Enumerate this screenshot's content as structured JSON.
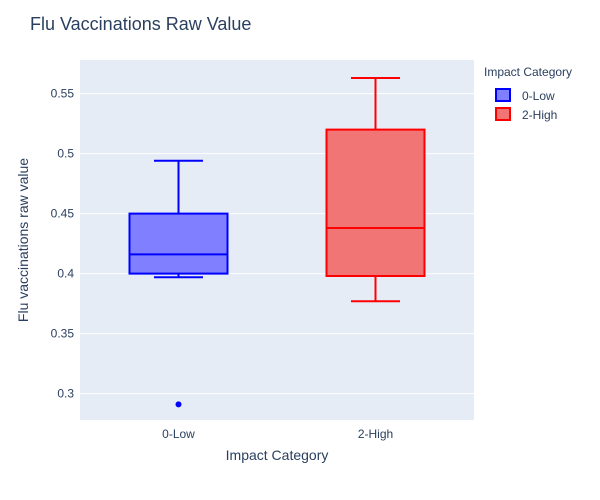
{
  "chart_data": {
    "type": "box",
    "title": "Flu Vaccinations Raw Value",
    "xlabel": "Impact Category",
    "ylabel": "Flu vaccinations raw value",
    "categories": [
      "0-Low",
      "2-High"
    ],
    "ylim": [
      0.278,
      0.578
    ],
    "yticks": [
      0.3,
      0.35,
      0.4,
      0.45,
      0.5,
      0.55
    ],
    "ytick_labels": [
      "0.3",
      "0.35",
      "0.4",
      "0.45",
      "0.5",
      "0.55"
    ],
    "grid": true,
    "legend": {
      "title": "Impact Category",
      "placement": "right"
    },
    "series": [
      {
        "name": "0-Low",
        "color": "#0000ff",
        "fill": "#7f7fff",
        "q1": 0.4,
        "median": 0.416,
        "q3": 0.45,
        "whisker_low": 0.397,
        "whisker_high": 0.494,
        "outliers": [
          0.291
        ]
      },
      {
        "name": "2-High",
        "color": "#ff0000",
        "fill": "#f27575",
        "q1": 0.398,
        "median": 0.438,
        "q3": 0.52,
        "whisker_low": 0.377,
        "whisker_high": 0.563,
        "outliers": []
      }
    ]
  }
}
